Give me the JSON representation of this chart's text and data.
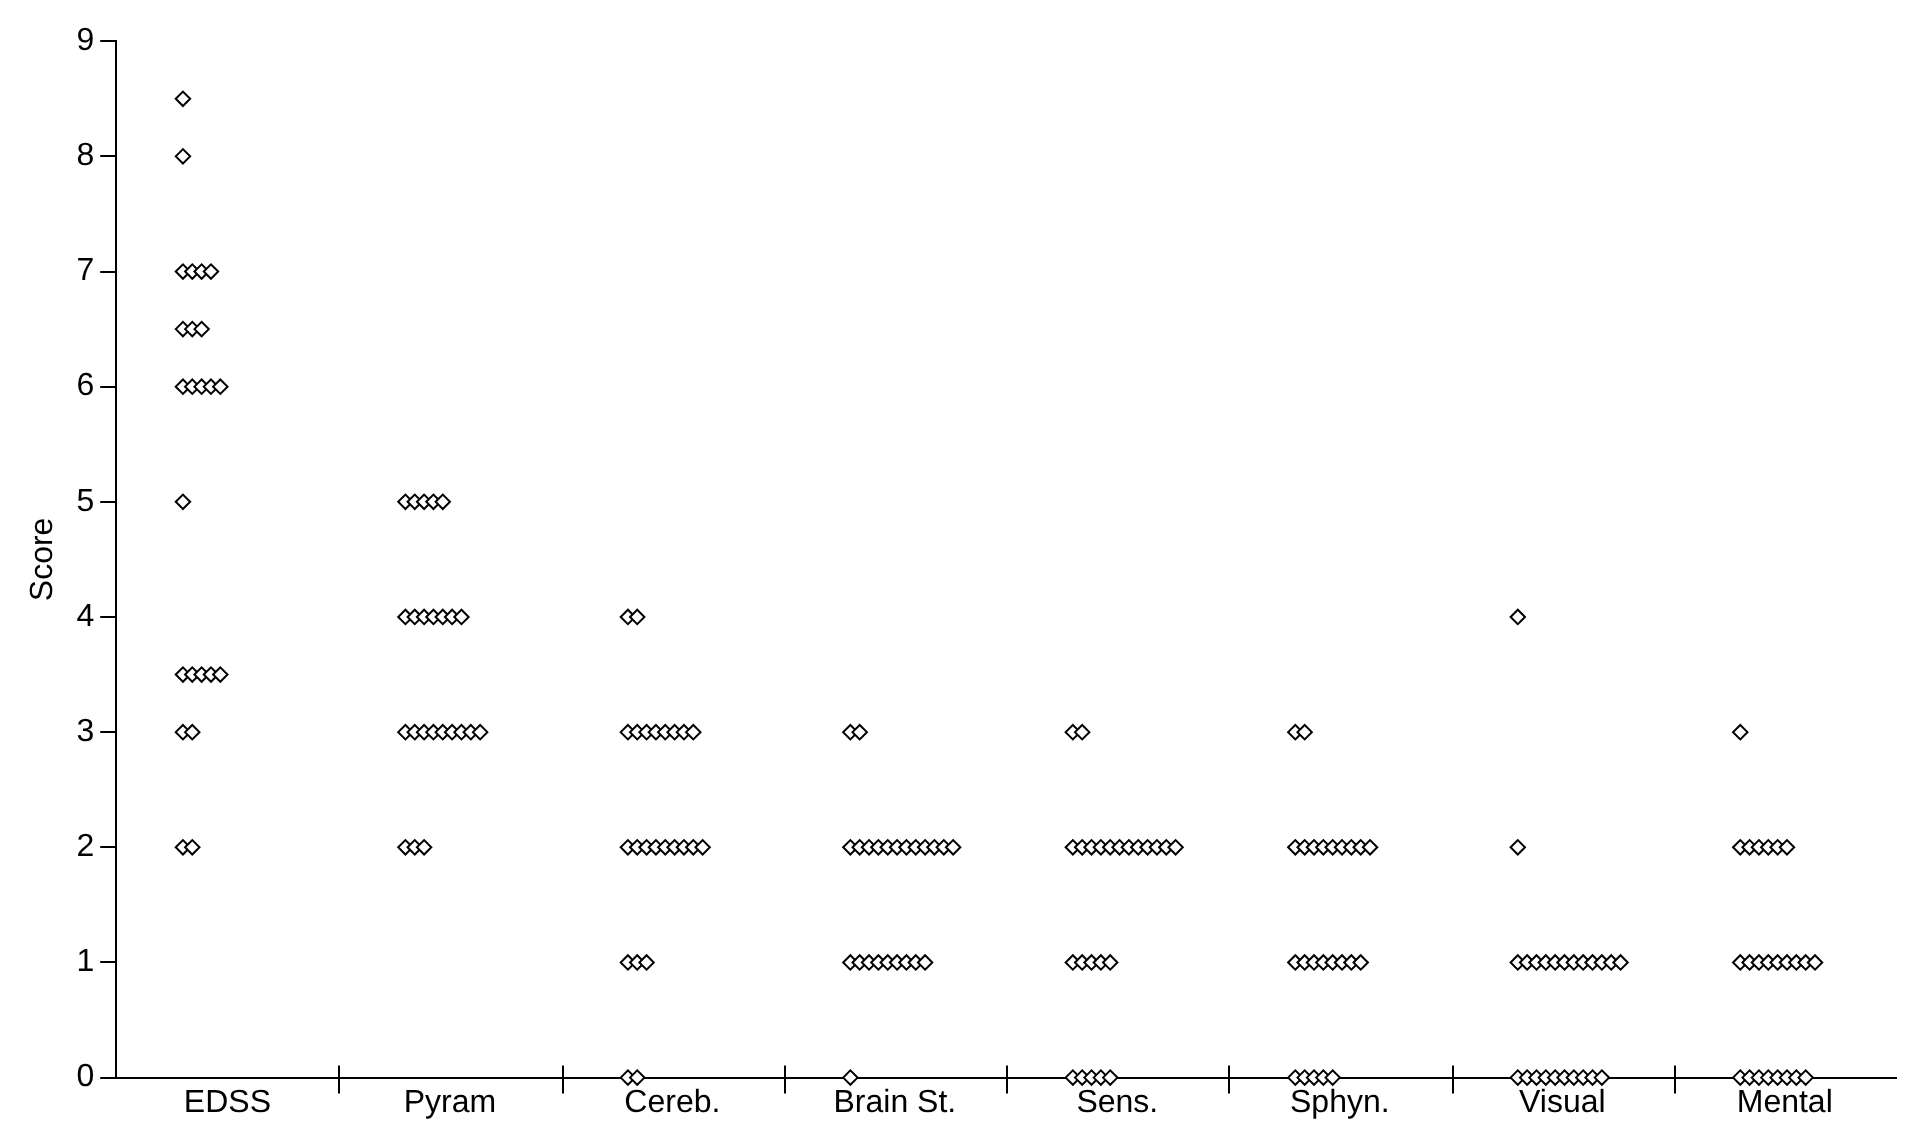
{
  "chart_data": {
    "type": "scatter",
    "ylabel": "Score",
    "categories": [
      "EDSS",
      "Pyram",
      "Cereb.",
      "Brain St.",
      "Sens.",
      "Sphyn.",
      "Visual",
      "Mental"
    ],
    "ylim": [
      0,
      9
    ],
    "yticks": [
      0,
      1,
      2,
      3,
      4,
      5,
      6,
      7,
      8,
      9
    ],
    "grid": false,
    "legend": false,
    "marker": "diamond",
    "series": [
      {
        "color": "#000000",
        "x": [
          "EDSS",
          "EDSS",
          "EDSS",
          "EDSS",
          "EDSS",
          "EDSS",
          "EDSS",
          "EDSS",
          "EDSS",
          "EDSS",
          "EDSS",
          "EDSS",
          "EDSS",
          "EDSS",
          "EDSS",
          "EDSS",
          "EDSS",
          "EDSS",
          "EDSS",
          "EDSS",
          "EDSS",
          "EDSS",
          "EDSS",
          "EDSS"
        ],
        "values": [
          8.5,
          8,
          7,
          7,
          7,
          7,
          6.5,
          6.5,
          6.5,
          6,
          6,
          6,
          6,
          6,
          5,
          3.5,
          3.5,
          3.5,
          3.5,
          3.5,
          3,
          3,
          2,
          2
        ]
      },
      {
        "color": "#000000",
        "x": [
          "Pyram",
          "Pyram",
          "Pyram",
          "Pyram",
          "Pyram",
          "Pyram",
          "Pyram",
          "Pyram",
          "Pyram",
          "Pyram",
          "Pyram",
          "Pyram",
          "Pyram",
          "Pyram",
          "Pyram",
          "Pyram",
          "Pyram",
          "Pyram",
          "Pyram",
          "Pyram",
          "Pyram",
          "Pyram",
          "Pyram",
          "Pyram"
        ],
        "values": [
          5,
          5,
          5,
          5,
          5,
          4,
          4,
          4,
          4,
          4,
          4,
          4,
          3,
          3,
          3,
          3,
          3,
          3,
          3,
          3,
          3,
          2,
          2,
          2
        ]
      },
      {
        "color": "#000000",
        "x": [
          "Cereb.",
          "Cereb.",
          "Cereb.",
          "Cereb.",
          "Cereb.",
          "Cereb.",
          "Cereb.",
          "Cereb.",
          "Cereb.",
          "Cereb.",
          "Cereb.",
          "Cereb.",
          "Cereb.",
          "Cereb.",
          "Cereb.",
          "Cereb.",
          "Cereb.",
          "Cereb.",
          "Cereb.",
          "Cereb.",
          "Cereb.",
          "Cereb.",
          "Cereb.",
          "Cereb."
        ],
        "values": [
          4,
          4,
          3,
          3,
          3,
          3,
          3,
          3,
          3,
          3,
          2,
          2,
          2,
          2,
          2,
          2,
          2,
          2,
          2,
          1,
          1,
          1,
          0,
          0
        ]
      },
      {
        "color": "#000000",
        "x": [
          "Brain St.",
          "Brain St.",
          "Brain St.",
          "Brain St.",
          "Brain St.",
          "Brain St.",
          "Brain St.",
          "Brain St.",
          "Brain St.",
          "Brain St.",
          "Brain St.",
          "Brain St.",
          "Brain St.",
          "Brain St.",
          "Brain St.",
          "Brain St.",
          "Brain St.",
          "Brain St.",
          "Brain St.",
          "Brain St.",
          "Brain St.",
          "Brain St.",
          "Brain St.",
          "Brain St."
        ],
        "values": [
          3,
          3,
          2,
          2,
          2,
          2,
          2,
          2,
          2,
          2,
          2,
          2,
          2,
          2,
          1,
          1,
          1,
          1,
          1,
          1,
          1,
          1,
          1,
          0
        ]
      },
      {
        "color": "#000000",
        "x": [
          "Sens.",
          "Sens.",
          "Sens.",
          "Sens.",
          "Sens.",
          "Sens.",
          "Sens.",
          "Sens.",
          "Sens.",
          "Sens.",
          "Sens.",
          "Sens.",
          "Sens.",
          "Sens.",
          "Sens.",
          "Sens.",
          "Sens.",
          "Sens.",
          "Sens.",
          "Sens.",
          "Sens.",
          "Sens.",
          "Sens.",
          "Sens."
        ],
        "values": [
          3,
          3,
          2,
          2,
          2,
          2,
          2,
          2,
          2,
          2,
          2,
          2,
          2,
          2,
          1,
          1,
          1,
          1,
          1,
          0,
          0,
          0,
          0,
          0
        ]
      },
      {
        "color": "#000000",
        "x": [
          "Sphyn.",
          "Sphyn.",
          "Sphyn.",
          "Sphyn.",
          "Sphyn.",
          "Sphyn.",
          "Sphyn.",
          "Sphyn.",
          "Sphyn.",
          "Sphyn.",
          "Sphyn.",
          "Sphyn.",
          "Sphyn.",
          "Sphyn.",
          "Sphyn.",
          "Sphyn.",
          "Sphyn.",
          "Sphyn.",
          "Sphyn.",
          "Sphyn.",
          "Sphyn.",
          "Sphyn.",
          "Sphyn.",
          "Sphyn."
        ],
        "values": [
          3,
          3,
          2,
          2,
          2,
          2,
          2,
          2,
          2,
          2,
          2,
          1,
          1,
          1,
          1,
          1,
          1,
          1,
          1,
          0,
          0,
          0,
          0,
          0
        ]
      },
      {
        "color": "#000000",
        "x": [
          "Visual",
          "Visual",
          "Visual",
          "Visual",
          "Visual",
          "Visual",
          "Visual",
          "Visual",
          "Visual",
          "Visual",
          "Visual",
          "Visual",
          "Visual",
          "Visual",
          "Visual",
          "Visual",
          "Visual",
          "Visual",
          "Visual",
          "Visual",
          "Visual",
          "Visual",
          "Visual",
          "Visual"
        ],
        "values": [
          4,
          2,
          1,
          1,
          1,
          1,
          1,
          1,
          1,
          1,
          1,
          1,
          1,
          1,
          0,
          0,
          0,
          0,
          0,
          0,
          0,
          0,
          0,
          0
        ]
      },
      {
        "color": "#000000",
        "x": [
          "Mental",
          "Mental",
          "Mental",
          "Mental",
          "Mental",
          "Mental",
          "Mental",
          "Mental",
          "Mental",
          "Mental",
          "Mental",
          "Mental",
          "Mental",
          "Mental",
          "Mental",
          "Mental",
          "Mental",
          "Mental",
          "Mental",
          "Mental",
          "Mental",
          "Mental",
          "Mental",
          "Mental"
        ],
        "values": [
          3,
          2,
          2,
          2,
          2,
          2,
          2,
          1,
          1,
          1,
          1,
          1,
          1,
          1,
          1,
          1,
          0,
          0,
          0,
          0,
          0,
          0,
          0,
          0
        ]
      }
    ]
  }
}
